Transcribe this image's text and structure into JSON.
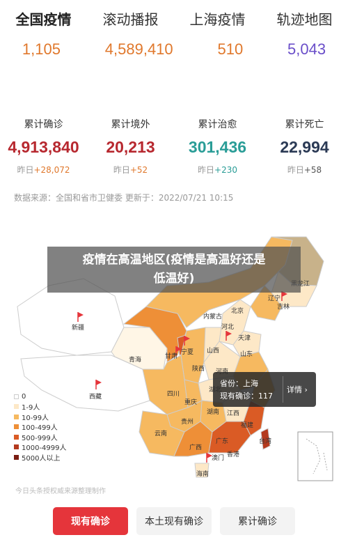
{
  "tabs": [
    "全国疫情",
    "滚动播报",
    "上海疫情",
    "轨迹地图"
  ],
  "top_numbers": [
    {
      "value": "1,105",
      "color": "#e0782c"
    },
    {
      "value": "4,589,410",
      "color": "#e0782c"
    },
    {
      "value": "510",
      "color": "#e0782c"
    },
    {
      "value": "5,043",
      "color": "#6a4ec9"
    }
  ],
  "stats": [
    {
      "label": "累计确诊",
      "value": "4,913,840",
      "color": "#b7282f",
      "delta_prefix": "昨日",
      "delta": "+28,072",
      "delta_color": "#e0782c"
    },
    {
      "label": "累计境外",
      "value": "20,213",
      "color": "#b7282f",
      "delta_prefix": "昨日",
      "delta": "+52",
      "delta_color": "#e0782c"
    },
    {
      "label": "累计治愈",
      "value": "301,436",
      "color": "#2a9d97",
      "delta_prefix": "昨日",
      "delta": "+230",
      "delta_color": "#2a9d97"
    },
    {
      "label": "累计死亡",
      "value": "22,994",
      "color": "#2b3a55",
      "delta_prefix": "昨日",
      "delta": "+58",
      "delta_color": "#555"
    }
  ],
  "source_text": "数据来源：全国和省市卫健委 更新于：2022/07/21 10:15",
  "overlay_title_line1": "疫情在高温地区(疫情是高温好还是",
  "overlay_title_line2": "低温好)",
  "tooltip": {
    "line1": "省份：上海",
    "line2": "现有确诊：117",
    "detail": "详情 ›"
  },
  "legend": [
    {
      "label": "0",
      "color": "#ffffff"
    },
    {
      "label": "1-9人",
      "color": "#fde8c7"
    },
    {
      "label": "10-99人",
      "color": "#f6b960"
    },
    {
      "label": "100-499人",
      "color": "#ee8f37"
    },
    {
      "label": "500-999人",
      "color": "#da5b25"
    },
    {
      "label": "1000-4999人",
      "color": "#b43a1e"
    },
    {
      "label": "5000人以上",
      "color": "#7a1d12"
    }
  ],
  "provinces": [
    "黑龙江",
    "吉林",
    "辽宁",
    "内蒙古",
    "北京",
    "天津",
    "河北",
    "山西",
    "山东",
    "宁夏",
    "甘肃",
    "青海",
    "新疆",
    "西藏",
    "陕西",
    "河南",
    "四川",
    "重庆",
    "湖北",
    "江西",
    "贵州",
    "湖南",
    "云南",
    "广西",
    "广东",
    "福建",
    "台湾",
    "香港",
    "澳门",
    "海南"
  ],
  "watermark": "今日头条授权威来源整理制作",
  "buttons": [
    "现有确诊",
    "本土现有确诊",
    "累计确诊"
  ],
  "colors": {
    "accent": "#e5353b"
  }
}
